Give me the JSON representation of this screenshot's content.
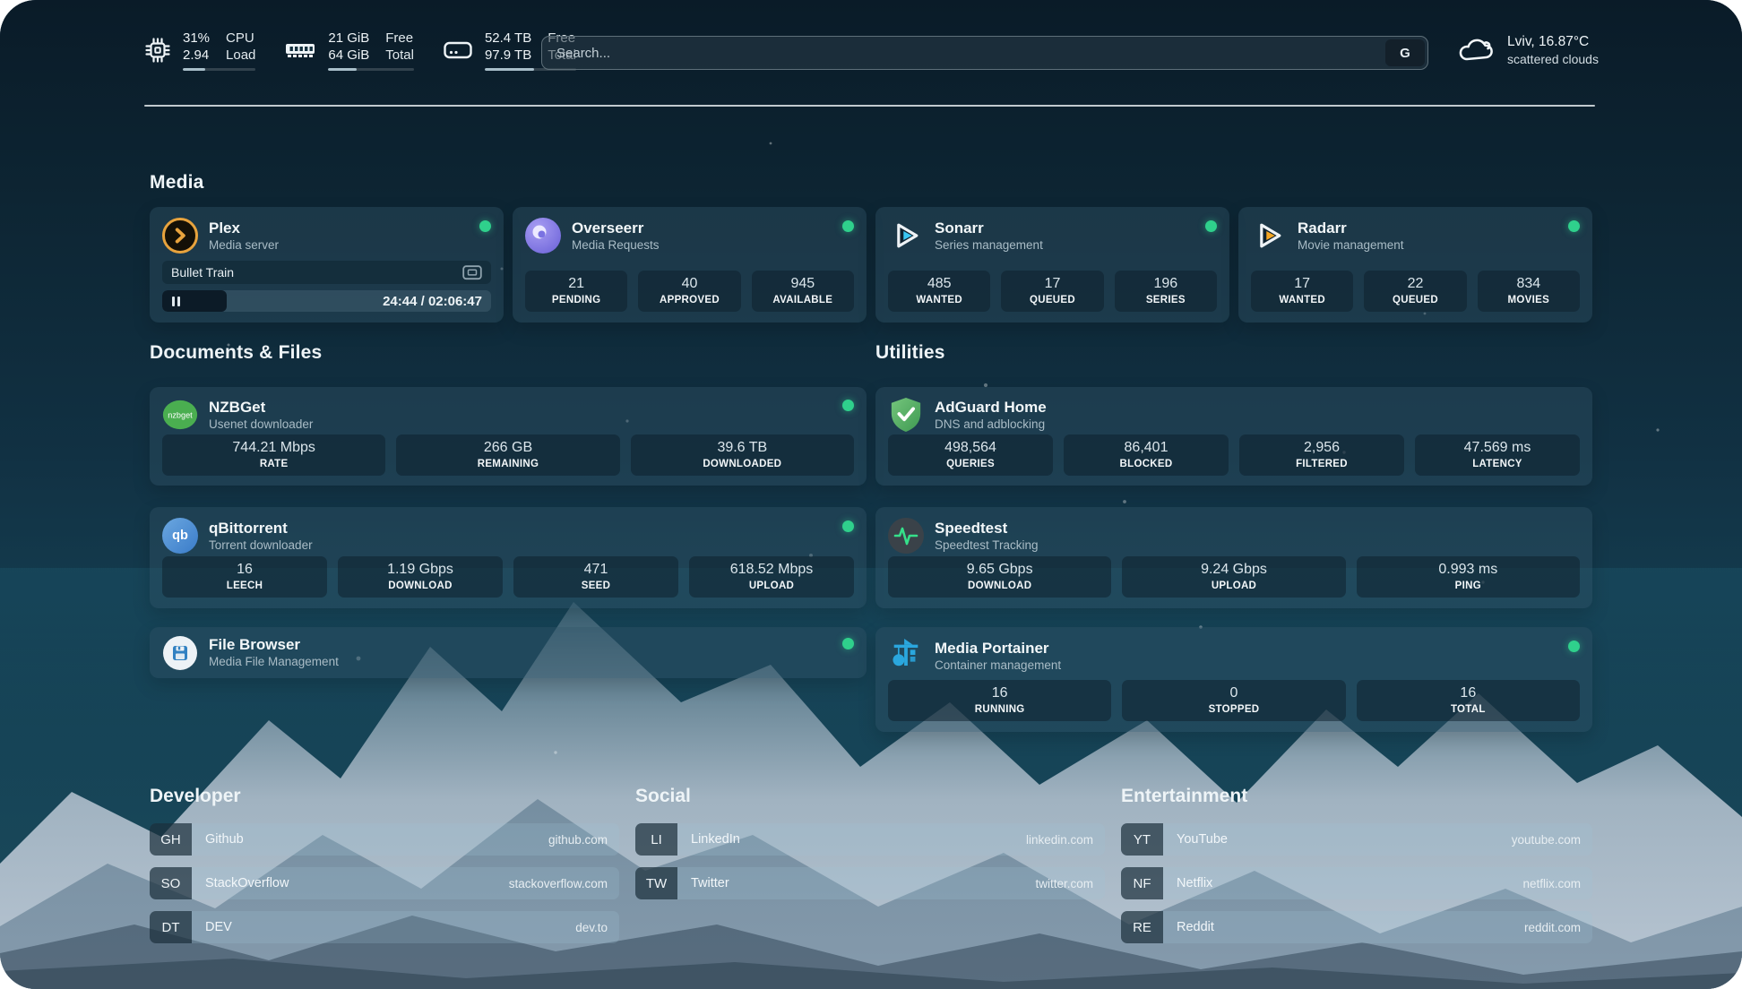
{
  "header": {
    "stats": [
      {
        "icon": "cpu-icon",
        "value1": "31%",
        "value2": "2.94",
        "label1": "CPU",
        "label2": "Load",
        "progress": 31
      },
      {
        "icon": "memory-icon",
        "value1": "21 GiB",
        "value2": "64 GiB",
        "label1": "Free",
        "label2": "Total",
        "progress": 33
      },
      {
        "icon": "disk-icon",
        "value1": "52.4 TB",
        "value2": "97.9 TB",
        "label1": "Free",
        "label2": "Total",
        "progress": 54
      }
    ],
    "search": {
      "placeholder": "Search...",
      "engine_button": "G"
    },
    "weather": {
      "location_temp": "Lviv, 16.87°C",
      "condition": "scattered clouds"
    }
  },
  "sections": {
    "media": {
      "title": "Media",
      "plex": {
        "title": "Plex",
        "subtitle": "Media server",
        "now_playing": "Bullet Train",
        "time_display": "24:44 / 02:06:47",
        "progress_percent": 19.5
      },
      "overseerr": {
        "title": "Overseerr",
        "subtitle": "Media Requests",
        "stats": [
          {
            "value": "21",
            "label": "PENDING"
          },
          {
            "value": "40",
            "label": "APPROVED"
          },
          {
            "value": "945",
            "label": "AVAILABLE"
          }
        ]
      },
      "sonarr": {
        "title": "Sonarr",
        "subtitle": "Series management",
        "stats": [
          {
            "value": "485",
            "label": "WANTED"
          },
          {
            "value": "17",
            "label": "QUEUED"
          },
          {
            "value": "196",
            "label": "SERIES"
          }
        ]
      },
      "radarr": {
        "title": "Radarr",
        "subtitle": "Movie management",
        "stats": [
          {
            "value": "17",
            "label": "WANTED"
          },
          {
            "value": "22",
            "label": "QUEUED"
          },
          {
            "value": "834",
            "label": "MOVIES"
          }
        ]
      }
    },
    "documents": {
      "title": "Documents & Files",
      "nzbget": {
        "title": "NZBGet",
        "subtitle": "Usenet downloader",
        "icon_text": "nzbget",
        "stats": [
          {
            "value": "744.21 Mbps",
            "label": "RATE"
          },
          {
            "value": "266 GB",
            "label": "REMAINING"
          },
          {
            "value": "39.6 TB",
            "label": "DOWNLOADED"
          }
        ]
      },
      "qbittorrent": {
        "title": "qBittorrent",
        "subtitle": "Torrent downloader",
        "icon_text": "qb",
        "stats": [
          {
            "value": "16",
            "label": "LEECH"
          },
          {
            "value": "1.19 Gbps",
            "label": "DOWNLOAD"
          },
          {
            "value": "471",
            "label": "SEED"
          },
          {
            "value": "618.52 Mbps",
            "label": "UPLOAD"
          }
        ]
      },
      "filebrowser": {
        "title": "File Browser",
        "subtitle": "Media File Management"
      }
    },
    "utilities": {
      "title": "Utilities",
      "adguard": {
        "title": "AdGuard Home",
        "subtitle": "DNS and adblocking",
        "stats": [
          {
            "value": "498,564",
            "label": "QUERIES"
          },
          {
            "value": "86,401",
            "label": "BLOCKED"
          },
          {
            "value": "2,956",
            "label": "FILTERED"
          },
          {
            "value": "47.569 ms",
            "label": "LATENCY"
          }
        ]
      },
      "speedtest": {
        "title": "Speedtest",
        "subtitle": "Speedtest Tracking",
        "stats": [
          {
            "value": "9.65 Gbps",
            "label": "DOWNLOAD"
          },
          {
            "value": "9.24 Gbps",
            "label": "UPLOAD"
          },
          {
            "value": "0.993 ms",
            "label": "PING"
          }
        ]
      },
      "portainer": {
        "title": "Media Portainer",
        "subtitle": "Container management",
        "stats": [
          {
            "value": "16",
            "label": "RUNNING"
          },
          {
            "value": "0",
            "label": "STOPPED"
          },
          {
            "value": "16",
            "label": "TOTAL"
          }
        ]
      }
    },
    "bookmarks": {
      "developer": {
        "title": "Developer",
        "links": [
          {
            "abbr": "GH",
            "name": "Github",
            "domain": "github.com"
          },
          {
            "abbr": "SO",
            "name": "StackOverflow",
            "domain": "stackoverflow.com"
          },
          {
            "abbr": "DT",
            "name": "DEV",
            "domain": "dev.to"
          }
        ]
      },
      "social": {
        "title": "Social",
        "links": [
          {
            "abbr": "LI",
            "name": "LinkedIn",
            "domain": "linkedin.com"
          },
          {
            "abbr": "TW",
            "name": "Twitter",
            "domain": "twitter.com"
          }
        ]
      },
      "entertainment": {
        "title": "Entertainment",
        "links": [
          {
            "abbr": "YT",
            "name": "YouTube",
            "domain": "youtube.com"
          },
          {
            "abbr": "NF",
            "name": "Netflix",
            "domain": "netflix.com"
          },
          {
            "abbr": "RE",
            "name": "Reddit",
            "domain": "reddit.com"
          }
        ]
      }
    }
  },
  "colors": {
    "status_green": "#2fd08c",
    "plex_amber": "#e8a33d",
    "sonarr_blue": "#3ac6f3",
    "radarr_orange": "#f5a623",
    "nzbget_green": "#4aae50",
    "qbittorrent_blue": "#3a7cc9",
    "adguard_green": "#5cb268",
    "speedtest_pulse": "#35e08a",
    "portainer_blue": "#2aa7de"
  }
}
